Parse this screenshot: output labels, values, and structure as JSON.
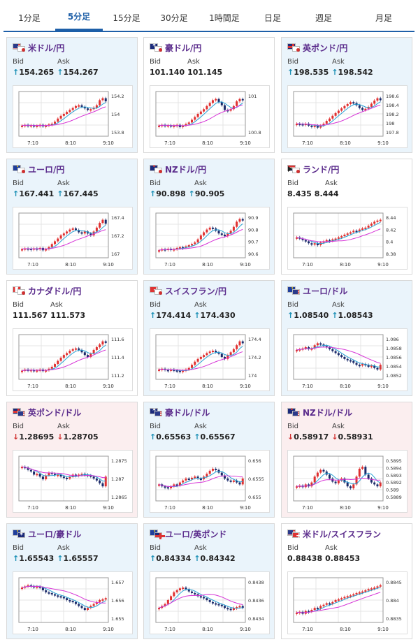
{
  "tabs": [
    {
      "label": "1分足",
      "active": false
    },
    {
      "label": "5分足",
      "active": true
    },
    {
      "label": "15分足",
      "active": false
    },
    {
      "label": "30分足",
      "active": false
    },
    {
      "label": "1時間足",
      "active": false
    },
    {
      "label": "日足",
      "active": false
    },
    {
      "label": "週足",
      "active": false
    },
    {
      "label": "月足",
      "active": false
    }
  ],
  "bid_label": "Bid",
  "ask_label": "Ask",
  "x_ticks": [
    "7:10",
    "8:10",
    "9:10"
  ],
  "colors": {
    "up_candle": "#e03030",
    "down_candle": "#1a2a6a",
    "ma_short": "#29a3d6",
    "ma_long": "#d633d6",
    "up_arrow": "#1a8fb5",
    "down_arrow": "#d03030"
  },
  "pairs": [
    {
      "name": "米ドル/円",
      "flags": [
        "us",
        "jp"
      ],
      "trend": "up",
      "bid": "154.265",
      "ask": "154.267",
      "bid_arrow": "↑",
      "ask_arrow": "↑",
      "y_ticks": [
        "154.2",
        "154",
        "153.8"
      ],
      "series": [
        0.2,
        0.22,
        0.2,
        0.21,
        0.19,
        0.2,
        0.22,
        0.18,
        0.2,
        0.23,
        0.25,
        0.3,
        0.38,
        0.45,
        0.5,
        0.55,
        0.6,
        0.65,
        0.7,
        0.72,
        0.68,
        0.64,
        0.6,
        0.62,
        0.66,
        0.72,
        0.85,
        0.9,
        0.82
      ]
    },
    {
      "name": "豪ドル/円",
      "flags": [
        "au",
        "jp"
      ],
      "trend": "neutral",
      "bid": "101.140",
      "ask": "101.145",
      "bid_arrow": "",
      "ask_arrow": "",
      "y_ticks": [
        "101",
        "100.8"
      ],
      "series": [
        0.2,
        0.22,
        0.2,
        0.21,
        0.18,
        0.2,
        0.22,
        0.16,
        0.2,
        0.24,
        0.28,
        0.35,
        0.42,
        0.5,
        0.56,
        0.62,
        0.7,
        0.78,
        0.85,
        0.88,
        0.8,
        0.72,
        0.6,
        0.58,
        0.62,
        0.7,
        0.82,
        0.88,
        0.86
      ]
    },
    {
      "name": "英ポンド/円",
      "flags": [
        "gb",
        "jp"
      ],
      "trend": "up",
      "bid": "198.535",
      "ask": "198.542",
      "bid_arrow": "↑",
      "ask_arrow": "↑",
      "y_ticks": [
        "198.6",
        "198.4",
        "198.2",
        "198",
        "197.8"
      ],
      "series": [
        0.25,
        0.24,
        0.22,
        0.25,
        0.2,
        0.18,
        0.2,
        0.15,
        0.2,
        0.25,
        0.32,
        0.38,
        0.45,
        0.52,
        0.58,
        0.64,
        0.7,
        0.75,
        0.8,
        0.78,
        0.72,
        0.65,
        0.6,
        0.63,
        0.68,
        0.76,
        0.84,
        0.9,
        0.85
      ]
    },
    {
      "name": "ユーロ/円",
      "flags": [
        "eu",
        "jp"
      ],
      "trend": "up",
      "bid": "167.441",
      "ask": "167.445",
      "bid_arrow": "↑",
      "ask_arrow": "↑",
      "y_ticks": [
        "167.4",
        "167.2",
        "167"
      ],
      "series": [
        0.15,
        0.17,
        0.16,
        0.14,
        0.17,
        0.15,
        0.18,
        0.12,
        0.15,
        0.2,
        0.28,
        0.35,
        0.42,
        0.5,
        0.55,
        0.6,
        0.65,
        0.68,
        0.64,
        0.58,
        0.55,
        0.6,
        0.55,
        0.5,
        0.6,
        0.7,
        0.82,
        0.9,
        0.8
      ]
    },
    {
      "name": "NZドル/円",
      "flags": [
        "nz",
        "jp"
      ],
      "trend": "up",
      "bid": "90.898",
      "ask": "90.905",
      "bid_arrow": "↑",
      "ask_arrow": "↑",
      "y_ticks": [
        "90.9",
        "90.8",
        "90.7",
        "90.6"
      ],
      "series": [
        0.12,
        0.15,
        0.14,
        0.16,
        0.13,
        0.15,
        0.18,
        0.2,
        0.19,
        0.22,
        0.25,
        0.28,
        0.32,
        0.4,
        0.5,
        0.58,
        0.65,
        0.7,
        0.68,
        0.62,
        0.55,
        0.52,
        0.48,
        0.55,
        0.62,
        0.72,
        0.85,
        0.92,
        0.88
      ]
    },
    {
      "name": "ランド/円",
      "flags": [
        "za",
        "jp"
      ],
      "trend": "neutral",
      "bid": "8.435",
      "ask": "8.444",
      "bid_arrow": "",
      "ask_arrow": "",
      "y_ticks": [
        "8.44",
        "8.42",
        "8.4",
        "8.38"
      ],
      "series": [
        0.45,
        0.42,
        0.38,
        0.35,
        0.3,
        0.28,
        0.3,
        0.25,
        0.32,
        0.35,
        0.38,
        0.36,
        0.4,
        0.42,
        0.45,
        0.48,
        0.52,
        0.55,
        0.58,
        0.62,
        0.6,
        0.65,
        0.68,
        0.7,
        0.75,
        0.8,
        0.85,
        0.88,
        0.9
      ]
    },
    {
      "name": "カナダドル/円",
      "flags": [
        "ca",
        "jp"
      ],
      "trend": "neutral",
      "bid": "111.567",
      "ask": "111.573",
      "bid_arrow": "",
      "ask_arrow": "",
      "y_ticks": [
        "111.6",
        "111.4",
        "111.2"
      ],
      "series": [
        0.15,
        0.18,
        0.16,
        0.17,
        0.15,
        0.16,
        0.18,
        0.14,
        0.16,
        0.2,
        0.25,
        0.32,
        0.4,
        0.48,
        0.55,
        0.6,
        0.66,
        0.7,
        0.72,
        0.68,
        0.62,
        0.55,
        0.5,
        0.58,
        0.68,
        0.75,
        0.82,
        0.9,
        0.86
      ]
    },
    {
      "name": "スイスフラン/円",
      "flags": [
        "ch",
        "jp"
      ],
      "trend": "up",
      "bid": "174.414",
      "ask": "174.430",
      "bid_arrow": "↑",
      "ask_arrow": "↑",
      "y_ticks": [
        "174.4",
        "174.2",
        "174"
      ],
      "series": [
        0.18,
        0.2,
        0.17,
        0.15,
        0.18,
        0.16,
        0.15,
        0.13,
        0.15,
        0.18,
        0.22,
        0.3,
        0.38,
        0.45,
        0.5,
        0.55,
        0.6,
        0.64,
        0.66,
        0.62,
        0.58,
        0.5,
        0.45,
        0.55,
        0.62,
        0.7,
        0.8,
        0.9,
        0.85
      ]
    },
    {
      "name": "ユーロ/ドル",
      "flags": [
        "eu",
        "us"
      ],
      "trend": "up",
      "bid": "1.08540",
      "ask": "1.08543",
      "bid_arrow": "↑",
      "ask_arrow": "↑",
      "y_ticks": [
        "1.086",
        "1.0858",
        "1.0856",
        "1.0854",
        "1.0852"
      ],
      "series": [
        0.68,
        0.7,
        0.72,
        0.75,
        0.7,
        0.72,
        0.8,
        0.85,
        0.82,
        0.78,
        0.75,
        0.7,
        0.65,
        0.6,
        0.55,
        0.5,
        0.45,
        0.42,
        0.4,
        0.35,
        0.3,
        0.28,
        0.32,
        0.3,
        0.25,
        0.28,
        0.22,
        0.18,
        0.3
      ]
    },
    {
      "name": "英ポンド/ドル",
      "flags": [
        "gb",
        "us"
      ],
      "trend": "down",
      "bid": "1.28695",
      "ask": "1.28705",
      "bid_arrow": "↓",
      "ask_arrow": "↓",
      "y_ticks": [
        "1.2875",
        "1.287",
        "1.2865"
      ],
      "series": [
        0.8,
        0.78,
        0.72,
        0.68,
        0.6,
        0.62,
        0.55,
        0.48,
        0.58,
        0.65,
        0.62,
        0.58,
        0.6,
        0.55,
        0.52,
        0.5,
        0.55,
        0.6,
        0.58,
        0.6,
        0.62,
        0.6,
        0.58,
        0.55,
        0.5,
        0.45,
        0.38,
        0.3,
        0.55
      ]
    },
    {
      "name": "豪ドル/ドル",
      "flags": [
        "au",
        "us"
      ],
      "trend": "up",
      "bid": "0.65563",
      "ask": "0.65567",
      "bid_arrow": "↑",
      "ask_arrow": "↑",
      "y_ticks": [
        "0.656",
        "0.6555",
        "0.655"
      ],
      "series": [
        0.35,
        0.3,
        0.28,
        0.25,
        0.3,
        0.35,
        0.32,
        0.4,
        0.45,
        0.5,
        0.48,
        0.52,
        0.55,
        0.5,
        0.48,
        0.55,
        0.62,
        0.7,
        0.75,
        0.72,
        0.65,
        0.58,
        0.5,
        0.45,
        0.42,
        0.45,
        0.4,
        0.35,
        0.5
      ]
    },
    {
      "name": "NZドル/ドル",
      "flags": [
        "nz",
        "us"
      ],
      "trend": "down",
      "bid": "0.58917",
      "ask": "0.58931",
      "bid_arrow": "↓",
      "ask_arrow": "↓",
      "y_ticks": [
        "0.5895",
        "0.5894",
        "0.5893",
        "0.5892",
        "0.589",
        "0.5889"
      ],
      "series": [
        0.3,
        0.32,
        0.28,
        0.35,
        0.3,
        0.4,
        0.55,
        0.65,
        0.72,
        0.68,
        0.6,
        0.5,
        0.42,
        0.38,
        0.45,
        0.5,
        0.4,
        0.3,
        0.25,
        0.35,
        0.55,
        0.75,
        0.8,
        0.6,
        0.5,
        0.4,
        0.35,
        0.3,
        0.4
      ]
    },
    {
      "name": "ユーロ/豪ドル",
      "flags": [
        "eu",
        "au"
      ],
      "trend": "up",
      "bid": "1.65543",
      "ask": "1.65557",
      "bid_arrow": "↑",
      "ask_arrow": "↑",
      "y_ticks": [
        "1.657",
        "1.656",
        "1.655"
      ],
      "series": [
        0.82,
        0.85,
        0.88,
        0.86,
        0.84,
        0.85,
        0.82,
        0.75,
        0.7,
        0.68,
        0.65,
        0.62,
        0.6,
        0.58,
        0.55,
        0.5,
        0.48,
        0.45,
        0.4,
        0.35,
        0.3,
        0.25,
        0.3,
        0.35,
        0.4,
        0.45,
        0.5,
        0.52,
        0.55
      ]
    },
    {
      "name": "ユーロ/英ポンド",
      "flags": [
        "eu",
        "gb"
      ],
      "trend": "up",
      "bid": "0.84334",
      "ask": "0.84342",
      "bid_arrow": "↑",
      "ask_arrow": "↑",
      "y_ticks": [
        "0.8438",
        "0.8436",
        "0.8434"
      ],
      "series": [
        0.3,
        0.35,
        0.4,
        0.5,
        0.6,
        0.7,
        0.75,
        0.8,
        0.82,
        0.78,
        0.72,
        0.68,
        0.65,
        0.6,
        0.58,
        0.55,
        0.5,
        0.45,
        0.42,
        0.4,
        0.38,
        0.35,
        0.3,
        0.28,
        0.25,
        0.3,
        0.32,
        0.35,
        0.3
      ]
    },
    {
      "name": "米ドル/スイスフラン",
      "flags": [
        "us",
        "ch"
      ],
      "trend": "neutral",
      "bid": "0.88438",
      "ask": "0.88453",
      "bid_arrow": "",
      "ask_arrow": "",
      "y_ticks": [
        "0.8845",
        "0.884",
        "0.8835"
      ],
      "series": [
        0.18,
        0.2,
        0.15,
        0.22,
        0.2,
        0.25,
        0.3,
        0.28,
        0.35,
        0.38,
        0.42,
        0.4,
        0.45,
        0.5,
        0.52,
        0.55,
        0.58,
        0.6,
        0.62,
        0.65,
        0.68,
        0.7,
        0.72,
        0.75,
        0.78,
        0.8,
        0.82,
        0.85,
        0.88
      ]
    }
  ]
}
